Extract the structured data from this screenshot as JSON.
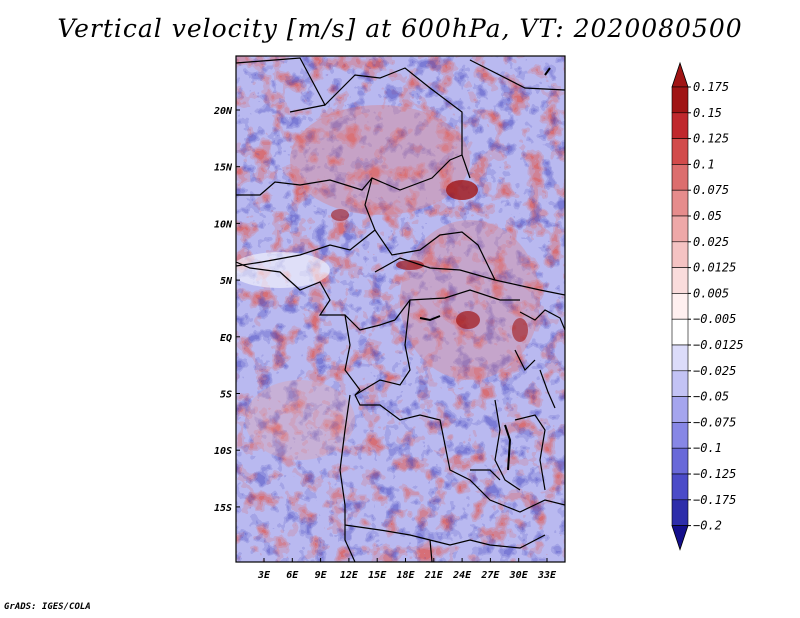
{
  "title": "Vertical velocity [m/s] at 600hPa, VT: 2020080500",
  "credit": "GrADS: IGES/COLA",
  "map": {
    "lat_labels": [
      "20N",
      "15N",
      "10N",
      "5N",
      "EQ",
      "5S",
      "10S",
      "15S"
    ],
    "lon_labels": [
      "3E",
      "6E",
      "9E",
      "12E",
      "15E",
      "18E",
      "21E",
      "24E",
      "27E",
      "30E",
      "33E"
    ]
  },
  "colorbar": {
    "labels": [
      "0.175",
      "0.15",
      "0.125",
      "0.1",
      "0.075",
      "0.05",
      "0.025",
      "0.0125",
      "0.005",
      "-0.005",
      "-0.0125",
      "-0.025",
      "-0.05",
      "-0.075",
      "-0.1",
      "-0.125",
      "-0.175",
      "-0.2"
    ],
    "colors": [
      "#a01414",
      "#c0282d",
      "#d24b4b",
      "#dc6e6e",
      "#e68c8c",
      "#eea8a8",
      "#f5c3c3",
      "#fadcdc",
      "#fff0f0",
      "#ffffff",
      "#dcdcfa",
      "#c3c3f5",
      "#a5a5ee",
      "#8787e6",
      "#6969d9",
      "#4b4bc8",
      "#2d2daa",
      "#140f8c"
    ],
    "top_color": "#a01414",
    "bottom_color": "#140f8c"
  }
}
